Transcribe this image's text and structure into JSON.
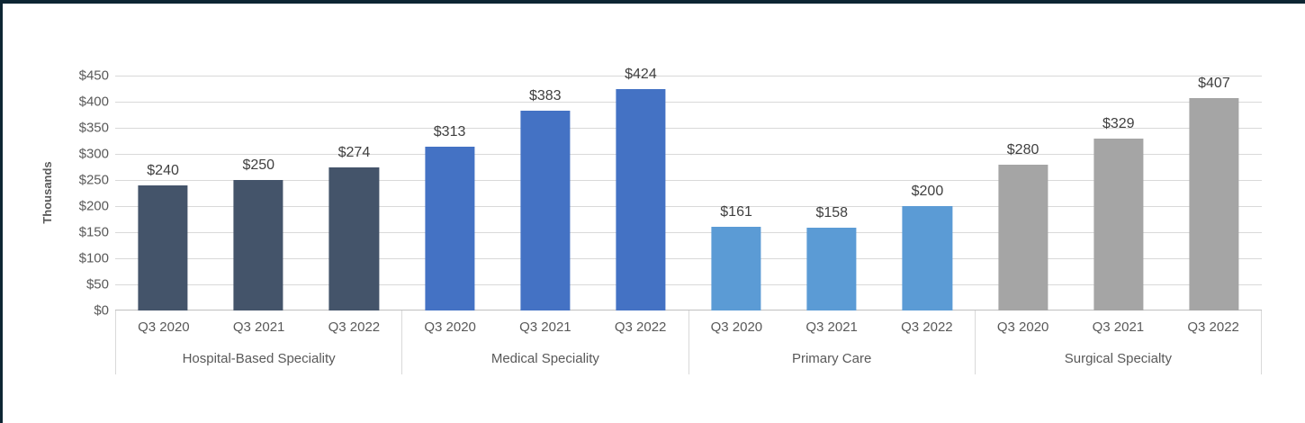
{
  "chart_data": {
    "type": "bar",
    "title": "",
    "ylabel": "Thousands",
    "ylim": [
      0,
      450
    ],
    "ytick_step": 50,
    "ytick_labels_top_to_bottom": [
      "$450",
      "$400",
      "$350",
      "$300",
      "$250",
      "$200",
      "$150",
      "$100",
      "$50",
      "$0"
    ],
    "grid": true,
    "legend": false,
    "categories": [
      "Q3 2020",
      "Q3 2021",
      "Q3 2022"
    ],
    "groups": [
      {
        "label": "Hospital-Based Speciality",
        "color": "#44546A",
        "values": [
          240,
          250,
          274
        ],
        "value_labels": [
          "$240",
          "$250",
          "$274"
        ]
      },
      {
        "label": "Medical Speciality",
        "color": "#4472C4",
        "values": [
          313,
          383,
          424
        ],
        "value_labels": [
          "$313",
          "$383",
          "$424"
        ]
      },
      {
        "label": "Primary Care",
        "color": "#5B9BD5",
        "values": [
          161,
          158,
          200
        ],
        "value_labels": [
          "$161",
          "$158",
          "$200"
        ]
      },
      {
        "label": "Surgical Specialty",
        "color": "#A5A5A5",
        "values": [
          280,
          329,
          407
        ],
        "value_labels": [
          "$280",
          "$329",
          "$407"
        ]
      }
    ]
  },
  "colors": {
    "frame_border": "#0d2633",
    "gridline": "#d9d9d9",
    "axis_line": "#bfbfbf",
    "axis_text": "#595959",
    "value_text": "#404040"
  }
}
